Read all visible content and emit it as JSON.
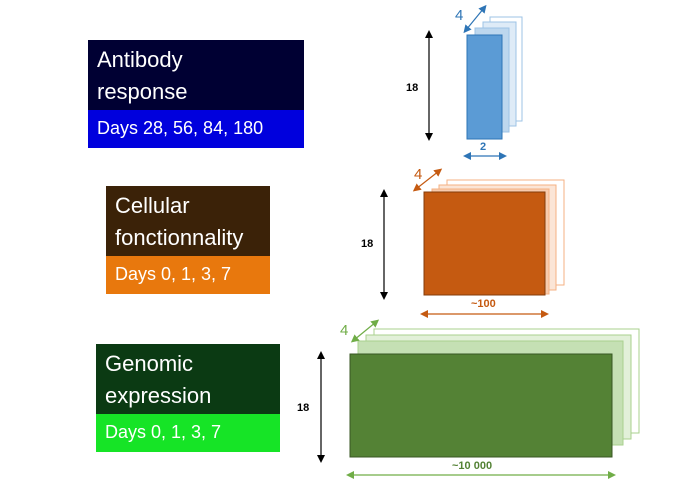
{
  "panels": [
    {
      "title": "Antibody response",
      "title_line1": "Antibody",
      "title_line2": "response",
      "days": "Days 28, 56, 84, 180"
    },
    {
      "title": "Cellular fonctionnality",
      "title_line1": "Cellular",
      "title_line2": "fonctionnality",
      "days": "Days 0, 1, 3, 7"
    },
    {
      "title": "Genomic expression",
      "title_line1": "Genomic",
      "title_line2": "expression",
      "days": "Days 0, 1, 3, 7"
    }
  ],
  "tensors": [
    {
      "depth": "4",
      "height": "18",
      "width": "2",
      "color": "#5b9bd5",
      "label_color": "#2e75b6"
    },
    {
      "depth": "4",
      "height": "18",
      "width": "~100",
      "color": "#c55a11",
      "label_color": "#c55a11"
    },
    {
      "depth": "4",
      "height": "18",
      "width": "~10 000",
      "color": "#548235",
      "label_color": "#70ad47"
    }
  ]
}
